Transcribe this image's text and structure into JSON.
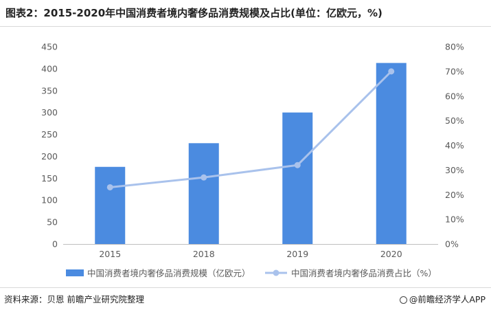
{
  "title": "图表2：2015-2020年中国消费者境内奢侈品消费规模及占比(单位：亿欧元，%)",
  "footer": {
    "source": "资料来源：贝恩 前瞻产业研究院整理",
    "brand": "@前瞻经济学人APP"
  },
  "colors": {
    "bar": "#4b8be0",
    "line": "#a9c2ec",
    "axis": "#bfbfbf",
    "text": "#595959"
  },
  "chart_data": {
    "type": "bar",
    "categories": [
      "2015",
      "2018",
      "2019",
      "2020"
    ],
    "series": [
      {
        "name": "中国消费者境内奢侈品消费规模（亿欧元）",
        "type": "bar",
        "axis": "left",
        "values": [
          176,
          230,
          300,
          413
        ]
      },
      {
        "name": "中国消费者境内奢侈品消费占比（%）",
        "type": "line",
        "axis": "right",
        "values": [
          23,
          27,
          32,
          70
        ]
      }
    ],
    "y_left": {
      "min": 0,
      "max": 450,
      "step": 50,
      "ticks": [
        "0",
        "50",
        "100",
        "150",
        "200",
        "250",
        "300",
        "350",
        "400",
        "450"
      ]
    },
    "y_right": {
      "min": 0,
      "max": 80,
      "step": 10,
      "ticks": [
        "0%",
        "10%",
        "20%",
        "30%",
        "40%",
        "50%",
        "60%",
        "70%",
        "80%"
      ]
    },
    "legend": {
      "position": "bottom"
    },
    "grid": false
  }
}
